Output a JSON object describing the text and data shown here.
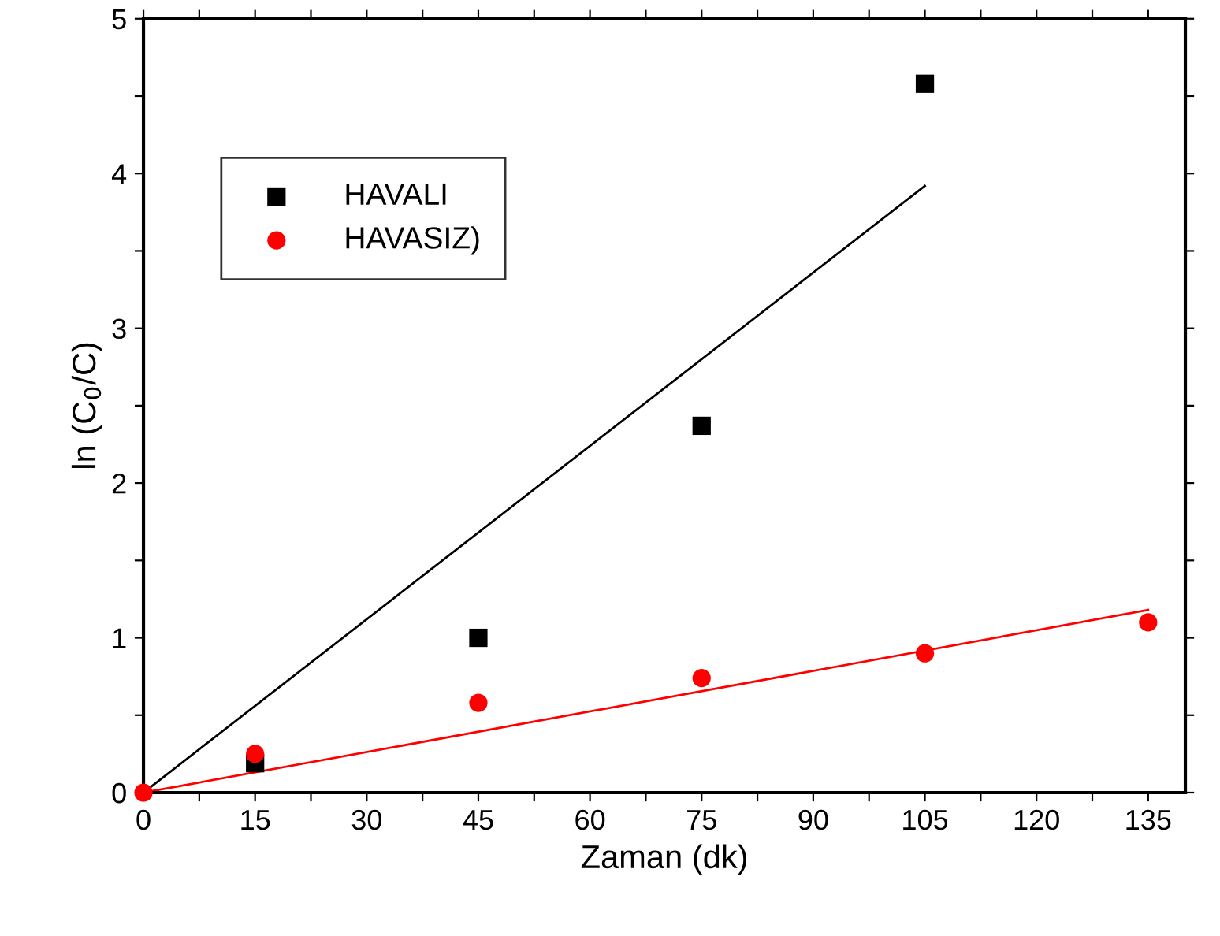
{
  "chart_data": {
    "type": "scatter",
    "xlabel": "Zaman (dk)",
    "ylabel": "ln (C$_{0}$/C)",
    "xlim": [
      0,
      140
    ],
    "ylim": [
      0,
      5
    ],
    "xticks": [
      0,
      {
        "value": 7.5,
        "label": null
      },
      15,
      {
        "value": 22.5,
        "label": null
      },
      30,
      {
        "value": 37.5,
        "label": null
      },
      45,
      {
        "value": 52.5,
        "label": null
      },
      60,
      {
        "value": 67.5,
        "label": null
      },
      75,
      {
        "value": 82.5,
        "label": null
      },
      90,
      {
        "value": 97.5,
        "label": null
      },
      105,
      {
        "value": 112.5,
        "label": null
      },
      120,
      {
        "value": 127.5,
        "label": null
      },
      135
    ],
    "yticks": [
      0,
      {
        "value": 0.5,
        "label": null
      },
      1,
      {
        "value": 1.5,
        "label": null
      },
      2,
      {
        "value": 2.5,
        "label": null
      },
      3,
      {
        "value": 3.5,
        "label": null
      },
      4,
      {
        "value": 4.5,
        "label": null
      },
      5
    ],
    "grid": false,
    "legend": "top left",
    "series": [
      {
        "name": "HAVALI",
        "marker": "square",
        "color": "#000000",
        "x": [
          15,
          45,
          75,
          105
        ],
        "values": [
          0.19,
          1.0,
          2.37,
          4.58
        ]
      },
      {
        "name": "HAVASIZ)",
        "marker": "circle",
        "color": "#ff0000",
        "x": [
          0,
          15,
          45,
          75,
          105,
          135
        ],
        "values": [
          0,
          0.25,
          0.58,
          0.74,
          0.9,
          1.1
        ]
      },
      {
        "type": "line",
        "color": "#000000",
        "x": [
          0,
          105
        ],
        "values": [
          0,
          3.92
        ]
      },
      {
        "type": "line",
        "color": "#ff0000",
        "x": [
          0,
          135
        ],
        "values": [
          0,
          1.18
        ]
      }
    ]
  }
}
